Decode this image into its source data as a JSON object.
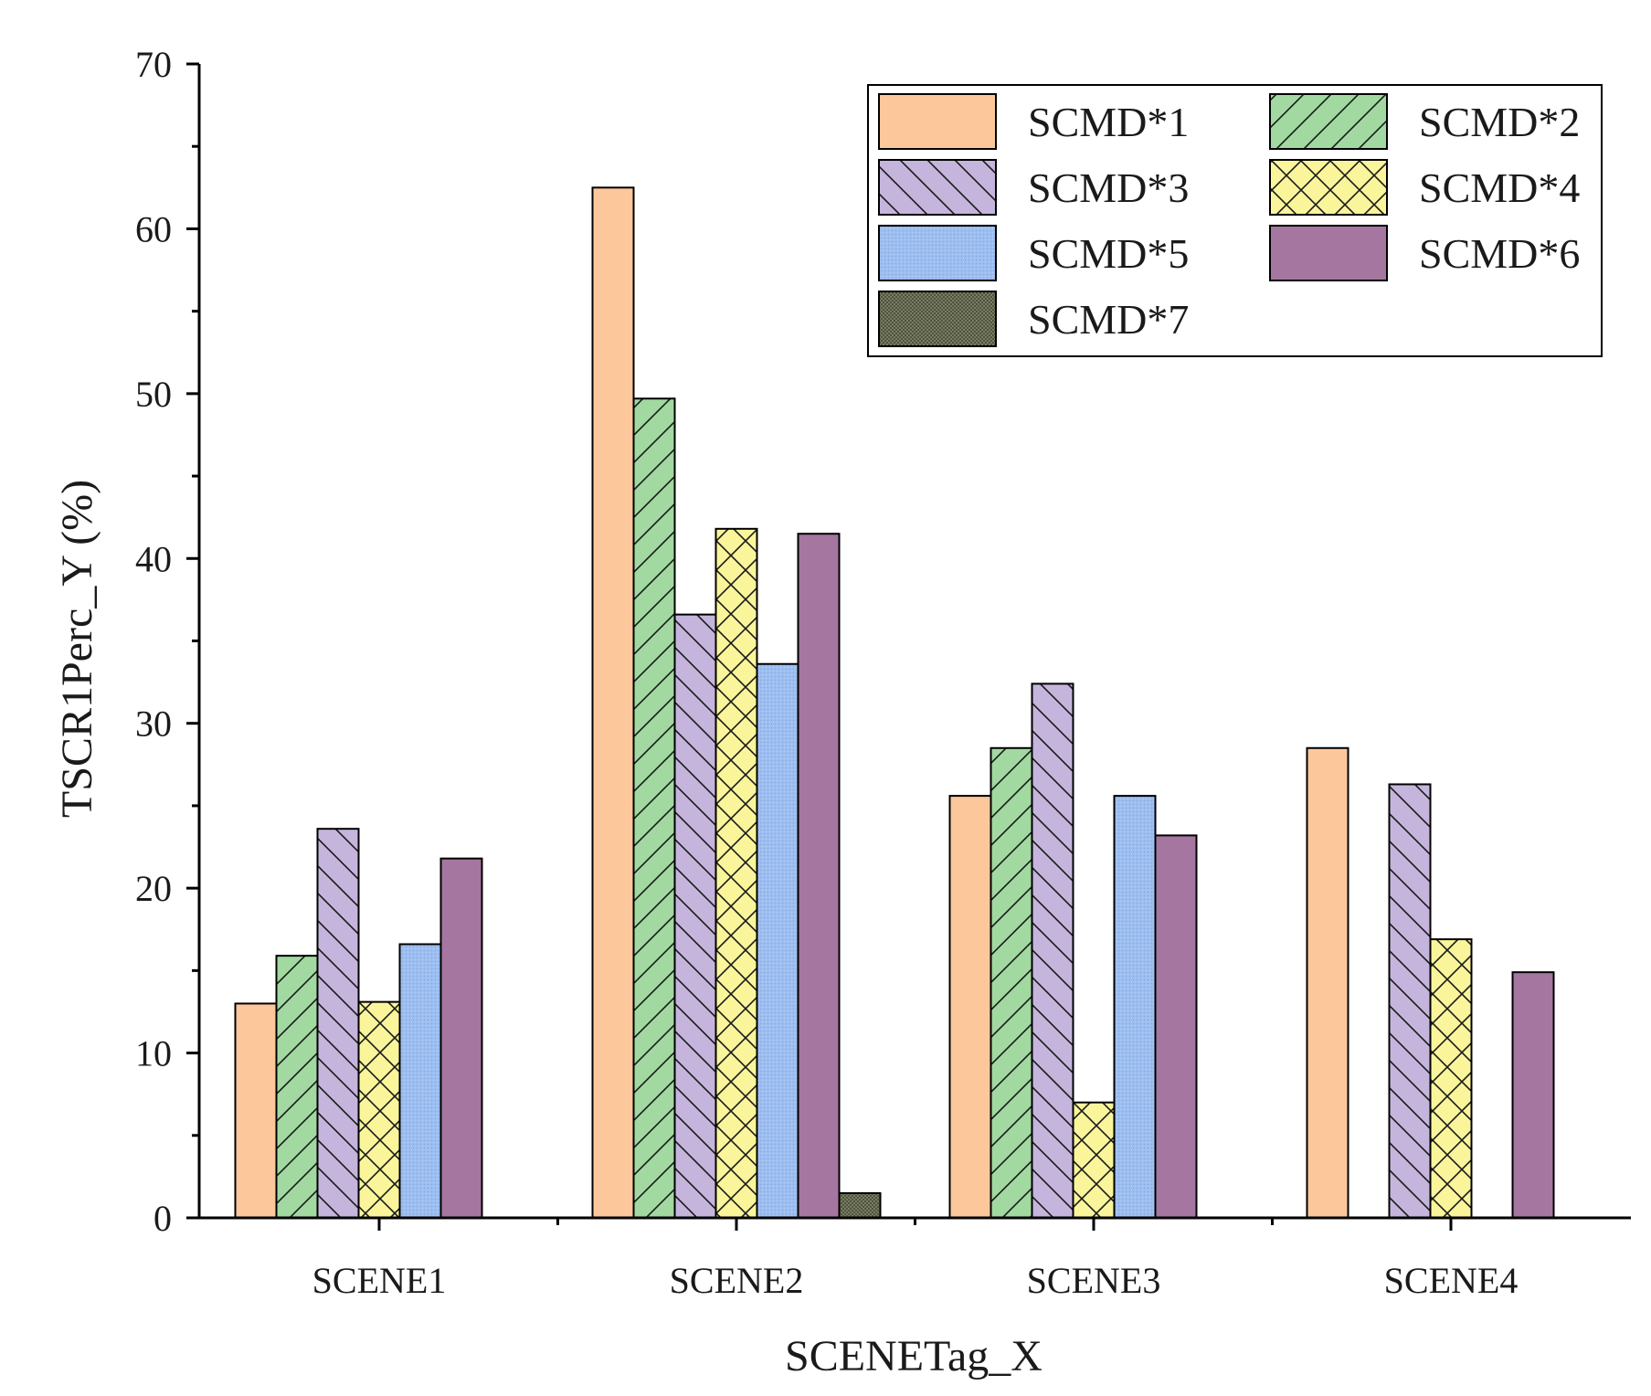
{
  "chart_data": {
    "type": "bar",
    "title": "",
    "xlabel": "SCENETag_X",
    "ylabel": "TSCR1Perc_Y (%)",
    "ylim": [
      0,
      70
    ],
    "yticks": [
      0,
      10,
      20,
      30,
      40,
      50,
      60,
      70
    ],
    "categories": [
      "SCENE1",
      "SCENE2",
      "SCENE3",
      "SCENE4"
    ],
    "legend_position": "top-right",
    "series": [
      {
        "name": "SCMD*1",
        "color": "#fcc79b",
        "pattern": "solid",
        "values": [
          13.0,
          62.5,
          25.6,
          28.5
        ]
      },
      {
        "name": "SCMD*2",
        "color": "#a1d9a1",
        "pattern": "diagonal-forward",
        "values": [
          15.9,
          49.7,
          28.5,
          null
        ]
      },
      {
        "name": "SCMD*3",
        "color": "#c5b5dd",
        "pattern": "diagonal-back",
        "values": [
          23.6,
          36.6,
          32.4,
          26.3
        ]
      },
      {
        "name": "SCMD*4",
        "color": "#faf59b",
        "pattern": "crosshatch",
        "values": [
          13.1,
          41.8,
          7.0,
          16.9
        ]
      },
      {
        "name": "SCMD*5",
        "color": "#9dbef0",
        "pattern": "dotted",
        "values": [
          16.6,
          33.6,
          25.6,
          null
        ]
      },
      {
        "name": "SCMD*6",
        "color": "#a5769f",
        "pattern": "solid",
        "values": [
          21.8,
          41.5,
          23.2,
          14.9
        ]
      },
      {
        "name": "SCMD*7",
        "color": "#6b6e55",
        "pattern": "mesh",
        "values": [
          null,
          1.5,
          null,
          null
        ]
      }
    ]
  }
}
